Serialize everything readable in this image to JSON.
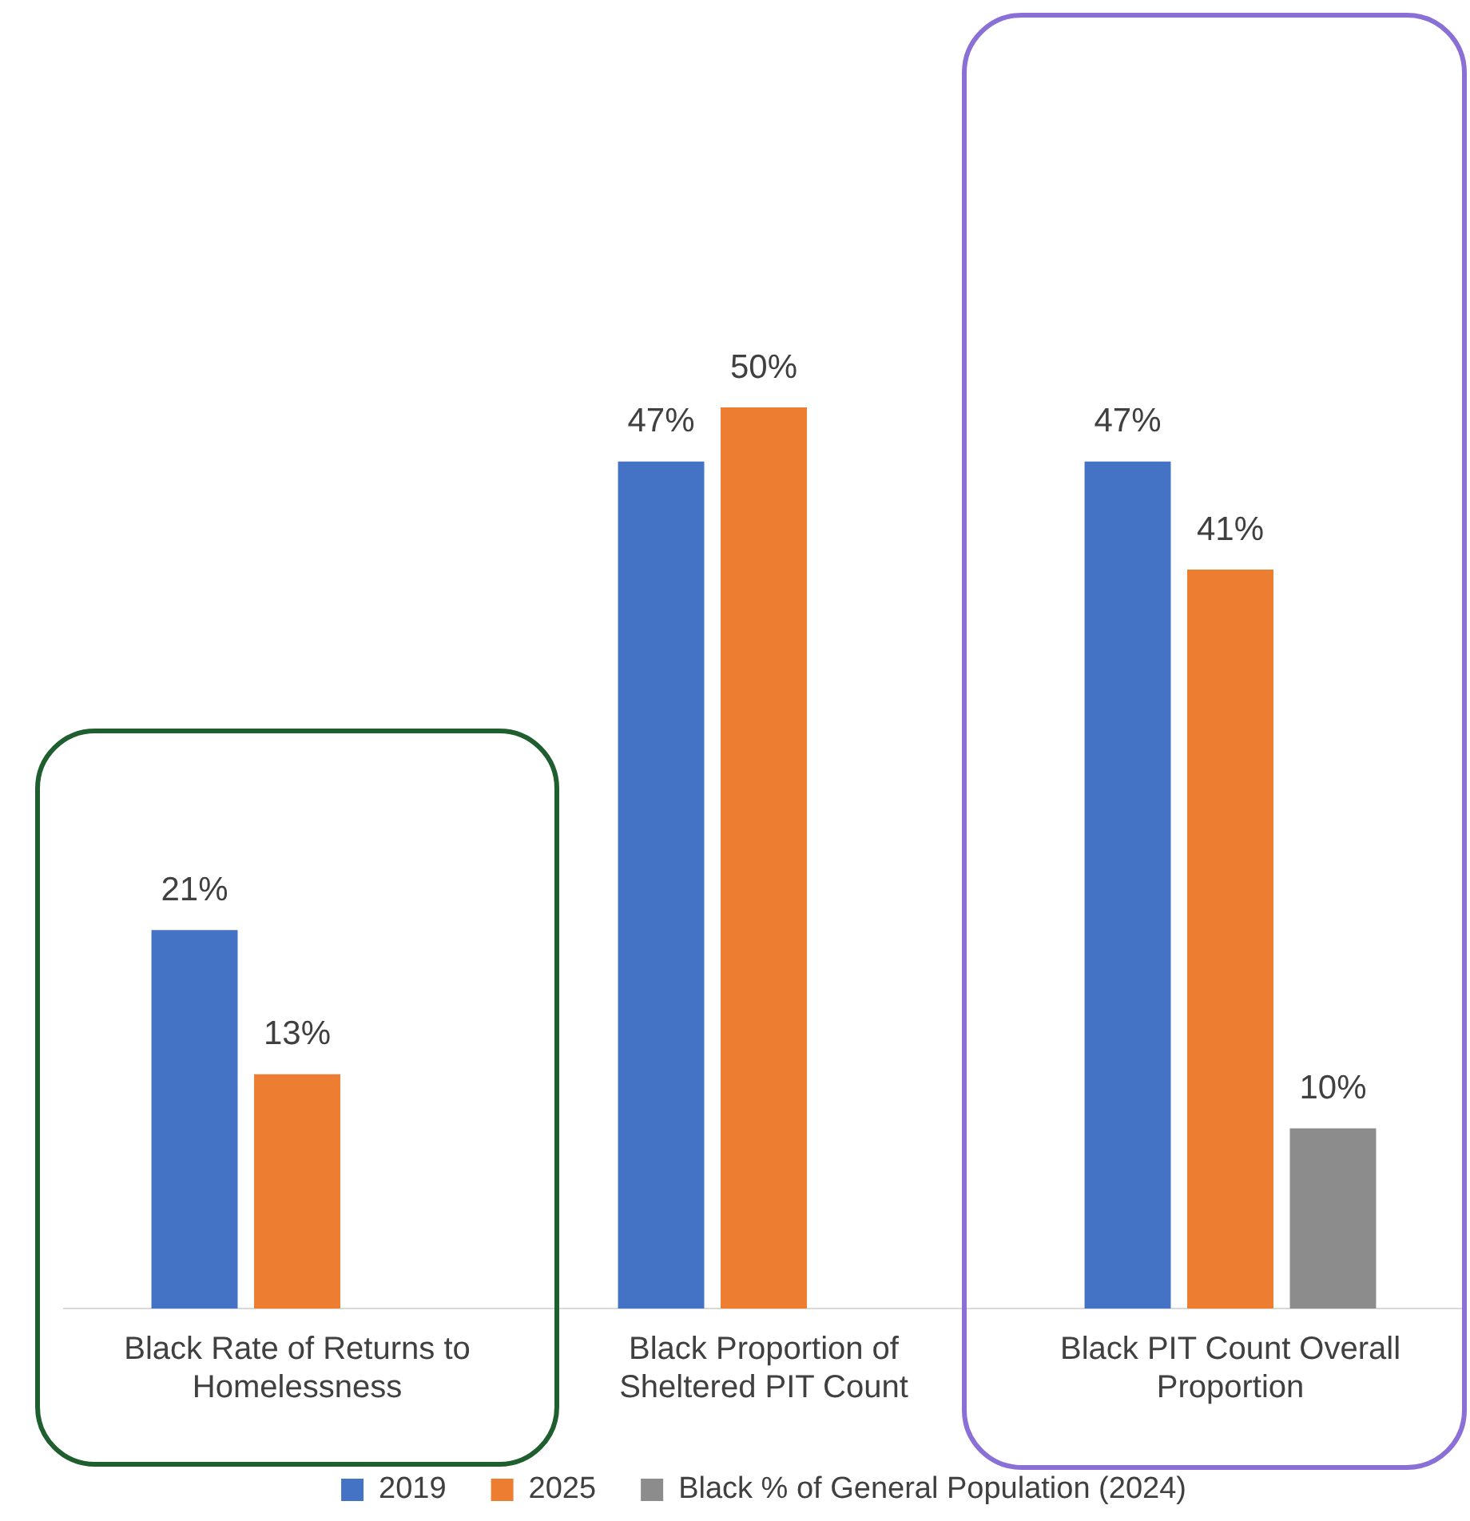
{
  "chart_data": {
    "type": "bar",
    "categories": [
      "Black Rate of Returns to Homelessness",
      "Black Proportion of Sheltered PIT Count",
      "Black PIT Count Overall Proportion"
    ],
    "series": [
      {
        "name": "2019",
        "color": "#4472c4",
        "values": [
          21,
          47,
          47
        ],
        "value_labels": [
          "21%",
          "47%",
          "47%"
        ]
      },
      {
        "name": "2025",
        "color": "#ed7d31",
        "values": [
          13,
          50,
          41
        ],
        "value_labels": [
          "13%",
          "50%",
          "41%"
        ]
      },
      {
        "name": "Black % of General Population (2024)",
        "color": "#8c8c8c",
        "values": [
          null,
          null,
          10
        ],
        "value_labels": [
          null,
          null,
          "10%"
        ]
      }
    ],
    "legend": "bottom",
    "grid": false
  }
}
